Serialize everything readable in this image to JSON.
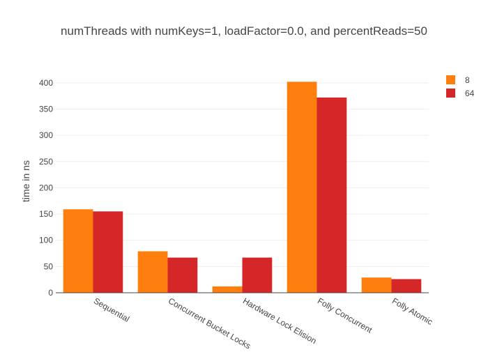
{
  "chart_data": {
    "type": "bar",
    "title": "numThreads with numKeys=1, loadFactor=0.0, and percentReads=50",
    "xlabel": "",
    "ylabel": "time in ns",
    "categories": [
      "Sequential",
      "Concurrent Bucket Locks",
      "Hardware Lock Elision",
      "Folly Concurrent",
      "Folly Atomic"
    ],
    "series": [
      {
        "name": "8",
        "color": "#ff7f0e",
        "values": [
          159,
          79,
          12,
          402,
          29
        ]
      },
      {
        "name": "64",
        "color": "#d62728",
        "values": [
          155,
          67,
          67,
          372,
          26
        ]
      }
    ],
    "yticks": [
      0,
      50,
      100,
      150,
      200,
      250,
      300,
      350,
      400
    ],
    "ylim": [
      0,
      425
    ],
    "grid": true,
    "legend_position": "top-right"
  }
}
